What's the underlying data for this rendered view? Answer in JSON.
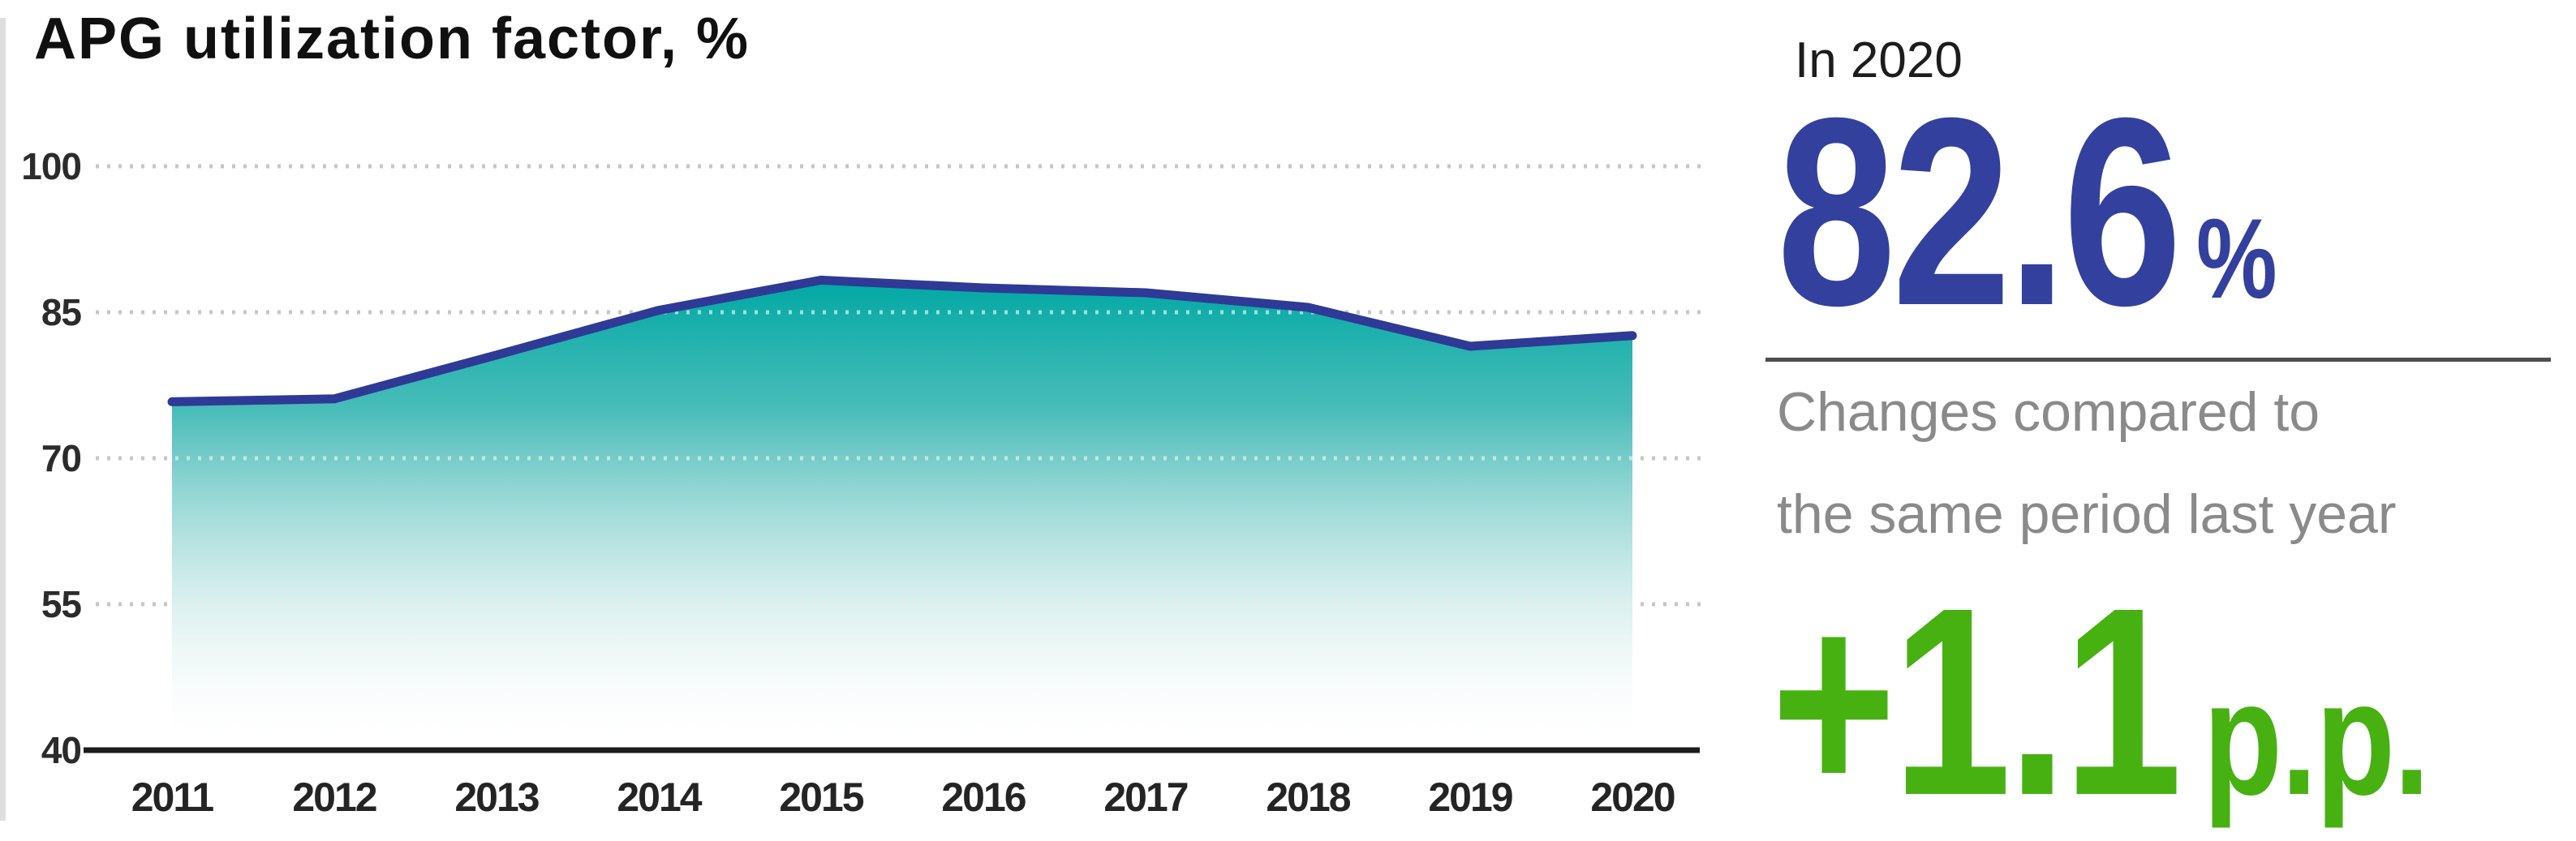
{
  "title": "APG utilization factor, %",
  "side_panel": {
    "period_label": "In 2020",
    "value": "82.6",
    "value_unit": "%",
    "caption_line1": "Changes compared to",
    "caption_line2": "the same period last year",
    "change_value": "+1.1",
    "change_unit": "p.p."
  },
  "colors": {
    "value_blue": "#33409E",
    "change_green": "#47B112",
    "line_blue": "#2E3A96",
    "area_teal_top": "#00A8A4",
    "caption_gray": "#8A8A8A",
    "grid_gray": "#C7C7C7",
    "axis_black": "#1B1B1B",
    "divider_gray": "#4D4D4D"
  },
  "chart_data": {
    "type": "area",
    "title": "APG utilization factor, %",
    "x": [
      "2011",
      "2012",
      "2013",
      "2014",
      "2015",
      "2016",
      "2017",
      "2018",
      "2019",
      "2020"
    ],
    "values": [
      75.8,
      76.1,
      80.6,
      85.2,
      88.3,
      87.5,
      87.0,
      85.5,
      81.5,
      82.6
    ],
    "unit": "%",
    "ylim": [
      40,
      100
    ],
    "y_ticks": [
      100,
      85,
      70,
      55,
      40
    ],
    "y_tick_labels": [
      "100",
      "85",
      "70",
      "55",
      "40"
    ],
    "grid": "horizontal dotted",
    "legend": "none",
    "annotations": {
      "latest_year": "2020",
      "latest_value": "82.6 %",
      "yoy_change": "+1.1 p.p."
    }
  }
}
